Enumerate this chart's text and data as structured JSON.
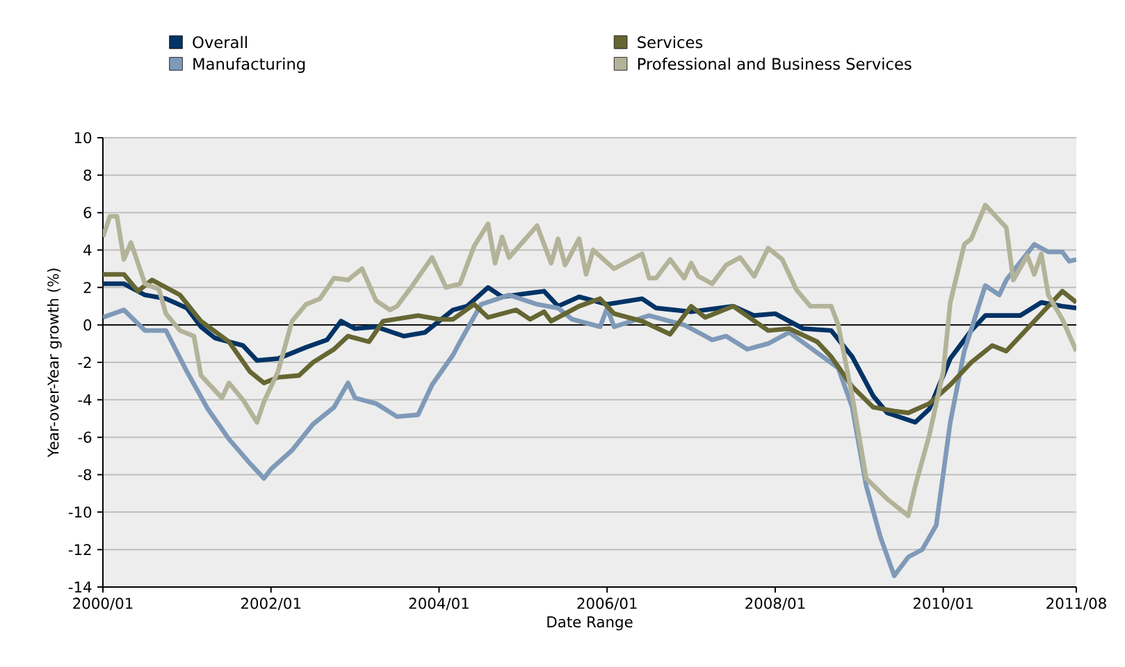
{
  "chart_data": {
    "type": "line",
    "xlabel": "Date Range",
    "ylabel": "Year-over-Year growth (%)",
    "xlim": [
      "2000-01",
      "2011-08"
    ],
    "xticks": [
      {
        "value": "2000-01",
        "label": "2000/01"
      },
      {
        "value": "2002-01",
        "label": "2002/01"
      },
      {
        "value": "2004-01",
        "label": "2004/01"
      },
      {
        "value": "2006-01",
        "label": "2006/01"
      },
      {
        "value": "2008-01",
        "label": "2008/01"
      },
      {
        "value": "2010-01",
        "label": "2010/01"
      },
      {
        "value": "2011-08",
        "label": "2011/08"
      }
    ],
    "ylim": [
      -14,
      10
    ],
    "yticks": [
      -14,
      -12,
      -10,
      -8,
      -6,
      -4,
      -2,
      0,
      2,
      4,
      6,
      8,
      10
    ],
    "grid": "y",
    "legend": "top",
    "line_style": "solid",
    "marker": "none",
    "ref_lines": [
      {
        "axis": "y",
        "value": 0,
        "color": "#000000"
      }
    ],
    "series": [
      {
        "name": "Overall",
        "color": "#003366",
        "x": [
          "2000-01",
          "2000-04",
          "2000-07",
          "2000-10",
          "2001-01",
          "2001-03",
          "2001-05",
          "2001-09",
          "2001-11",
          "2002-02",
          "2002-06",
          "2002-09",
          "2002-11",
          "2003-01",
          "2003-04",
          "2003-08",
          "2003-11",
          "2004-03",
          "2004-05",
          "2004-08",
          "2004-10",
          "2005-04",
          "2005-06",
          "2005-09",
          "2006-01",
          "2006-06",
          "2006-08",
          "2007-01",
          "2007-07",
          "2007-10",
          "2008-01",
          "2008-05",
          "2008-09",
          "2008-12",
          "2009-03",
          "2009-05",
          "2009-09",
          "2009-11",
          "2010-02",
          "2010-05",
          "2010-07",
          "2010-12",
          "2011-03",
          "2011-06",
          "2011-08"
        ],
        "values": [
          2.2,
          2.2,
          1.6,
          1.4,
          0.9,
          -0.1,
          -0.7,
          -1.1,
          -1.9,
          -1.8,
          -1.2,
          -0.8,
          0.2,
          -0.2,
          -0.1,
          -0.6,
          -0.4,
          0.8,
          1.0,
          2.0,
          1.5,
          1.8,
          1.0,
          1.5,
          1.1,
          1.4,
          0.9,
          0.7,
          1.0,
          0.5,
          0.6,
          -0.2,
          -0.3,
          -1.7,
          -3.8,
          -4.7,
          -5.2,
          -4.5,
          -1.8,
          -0.3,
          0.5,
          0.5,
          1.2,
          1.0,
          0.9
        ]
      },
      {
        "name": "Manufacturing",
        "color": "#7f9ab8",
        "x": [
          "2000-01",
          "2000-04",
          "2000-07",
          "2000-10",
          "2001-01",
          "2001-04",
          "2001-07",
          "2001-10",
          "2001-12",
          "2002-01",
          "2002-04",
          "2002-07",
          "2002-10",
          "2002-12",
          "2003-01",
          "2003-04",
          "2003-07",
          "2003-10",
          "2003-12",
          "2004-03",
          "2004-04",
          "2004-07",
          "2004-11",
          "2005-03",
          "2005-06",
          "2005-08",
          "2005-12",
          "2006-01",
          "2006-02",
          "2006-07",
          "2006-12",
          "2007-04",
          "2007-06",
          "2007-09",
          "2007-12",
          "2008-03",
          "2008-10",
          "2008-12",
          "2009-02",
          "2009-04",
          "2009-06",
          "2009-08",
          "2009-10",
          "2009-12",
          "2010-02",
          "2010-04",
          "2010-07",
          "2010-09",
          "2010-10",
          "2011-02",
          "2011-04",
          "2011-06",
          "2011-07",
          "2011-08"
        ],
        "values": [
          0.4,
          0.8,
          -0.3,
          -0.3,
          -2.5,
          -4.5,
          -6.1,
          -7.4,
          -8.2,
          -7.7,
          -6.7,
          -5.3,
          -4.4,
          -3.1,
          -3.9,
          -4.2,
          -4.9,
          -4.8,
          -3.2,
          -1.6,
          -0.9,
          1.1,
          1.6,
          1.1,
          0.9,
          0.3,
          -0.1,
          0.9,
          -0.1,
          0.5,
          0.0,
          -0.8,
          -0.6,
          -1.3,
          -1.0,
          -0.4,
          -2.3,
          -4.4,
          -8.6,
          -11.3,
          -13.4,
          -12.4,
          -12.0,
          -10.7,
          -5.2,
          -1.4,
          2.1,
          1.6,
          2.4,
          4.3,
          3.9,
          3.9,
          3.4,
          3.5
        ]
      },
      {
        "name": "Services",
        "color": "#666633",
        "x": [
          "2000-01",
          "2000-04",
          "2000-06",
          "2000-08",
          "2000-12",
          "2001-03",
          "2001-07",
          "2001-10",
          "2001-12",
          "2002-02",
          "2002-05",
          "2002-07",
          "2002-10",
          "2002-12",
          "2003-03",
          "2003-05",
          "2003-10",
          "2004-01",
          "2004-03",
          "2004-06",
          "2004-08",
          "2004-12",
          "2005-02",
          "2005-04",
          "2005-05",
          "2005-09",
          "2005-12",
          "2006-02",
          "2006-06",
          "2006-10",
          "2007-01",
          "2007-03",
          "2007-07",
          "2007-12",
          "2008-03",
          "2008-07",
          "2008-09",
          "2008-12",
          "2009-03",
          "2009-06",
          "2009-08",
          "2009-11",
          "2010-02",
          "2010-05",
          "2010-08",
          "2010-10",
          "2011-01",
          "2011-03",
          "2011-04",
          "2011-06",
          "2011-08"
        ],
        "values": [
          2.7,
          2.7,
          1.8,
          2.4,
          1.6,
          0.2,
          -0.9,
          -2.5,
          -3.1,
          -2.8,
          -2.7,
          -2.0,
          -1.3,
          -0.6,
          -0.9,
          0.2,
          0.5,
          0.3,
          0.3,
          1.1,
          0.4,
          0.8,
          0.3,
          0.7,
          0.2,
          1.0,
          1.4,
          0.6,
          0.2,
          -0.5,
          1.0,
          0.4,
          1.0,
          -0.3,
          -0.2,
          -0.9,
          -1.7,
          -3.3,
          -4.4,
          -4.6,
          -4.7,
          -4.2,
          -3.2,
          -2.0,
          -1.1,
          -1.4,
          -0.2,
          0.6,
          1.0,
          1.8,
          1.2
        ]
      },
      {
        "name": "Professional and Business Services",
        "color": "#b3b399",
        "x": [
          "2000-01",
          "2000-02",
          "2000-03",
          "2000-04",
          "2000-05",
          "2000-07",
          "2000-09",
          "2000-10",
          "2000-12",
          "2001-02",
          "2001-03",
          "2001-06",
          "2001-07",
          "2001-09",
          "2001-11",
          "2001-12",
          "2002-02",
          "2002-04",
          "2002-06",
          "2002-08",
          "2002-10",
          "2002-12",
          "2003-02",
          "2003-04",
          "2003-06",
          "2003-07",
          "2003-09",
          "2003-12",
          "2004-02",
          "2004-04",
          "2004-06",
          "2004-08",
          "2004-09",
          "2004-10",
          "2004-11",
          "2005-03",
          "2005-05",
          "2005-06",
          "2005-07",
          "2005-09",
          "2005-10",
          "2005-11",
          "2006-02",
          "2006-06",
          "2006-07",
          "2006-08",
          "2006-10",
          "2006-12",
          "2007-01",
          "2007-02",
          "2007-04",
          "2007-06",
          "2007-08",
          "2007-10",
          "2007-12",
          "2008-02",
          "2008-04",
          "2008-06",
          "2008-09",
          "2008-10",
          "2008-12",
          "2009-02",
          "2009-05",
          "2009-08",
          "2009-09",
          "2009-11",
          "2010-01",
          "2010-02",
          "2010-04",
          "2010-05",
          "2010-07",
          "2010-10",
          "2010-11",
          "2011-01",
          "2011-02",
          "2011-03",
          "2011-04",
          "2011-06",
          "2011-08"
        ],
        "values": [
          4.7,
          5.8,
          5.8,
          3.5,
          4.4,
          2.2,
          1.9,
          0.6,
          -0.3,
          -0.6,
          -2.7,
          -3.9,
          -3.1,
          -4.0,
          -5.2,
          -4.1,
          -2.5,
          0.2,
          1.1,
          1.4,
          2.5,
          2.4,
          3.0,
          1.3,
          0.8,
          1.0,
          2.0,
          3.6,
          2.0,
          2.2,
          4.2,
          5.4,
          3.3,
          4.7,
          3.6,
          5.3,
          3.3,
          4.6,
          3.2,
          4.6,
          2.7,
          4.0,
          3.0,
          3.8,
          2.5,
          2.5,
          3.5,
          2.5,
          3.3,
          2.6,
          2.2,
          3.2,
          3.6,
          2.6,
          4.1,
          3.5,
          1.9,
          1.0,
          1.0,
          0.0,
          -3.8,
          -8.2,
          -9.3,
          -10.2,
          -8.6,
          -5.9,
          -2.5,
          1.2,
          4.3,
          4.6,
          6.4,
          5.2,
          2.4,
          3.7,
          2.7,
          3.8,
          1.6,
          0.3,
          -1.4
        ]
      }
    ]
  }
}
